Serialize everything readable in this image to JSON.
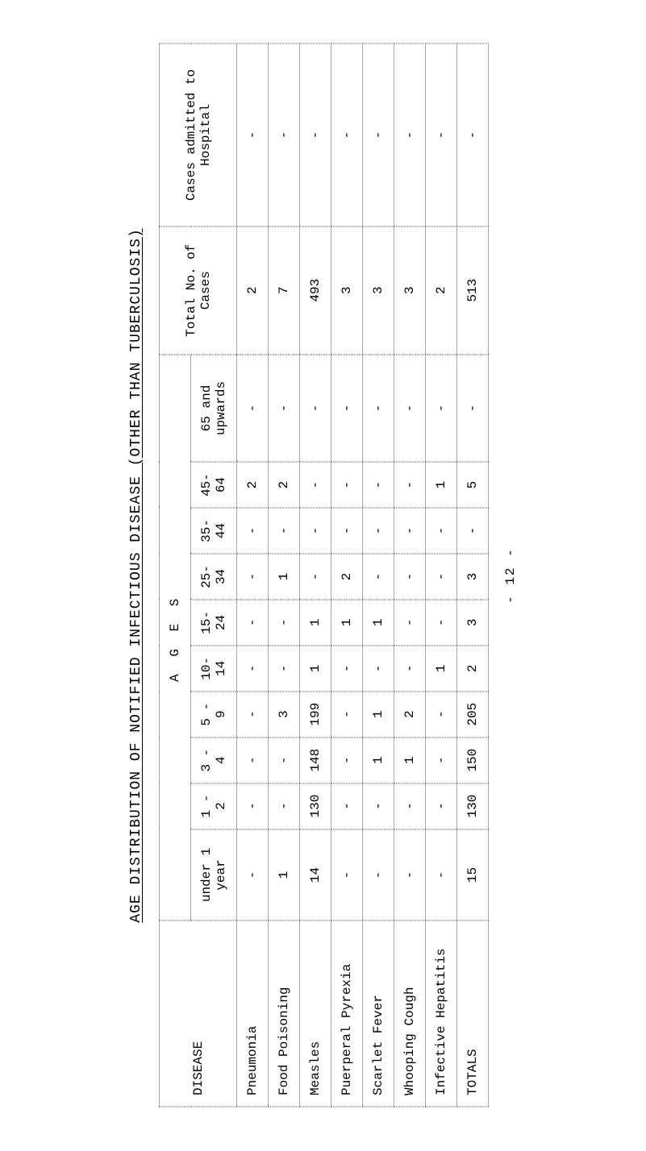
{
  "title": "AGE DISTRIBUTION OF NOTIFIED INFECTIOUS DISEASE (OTHER THAN TUBERCULOSIS)",
  "header": {
    "disease": "DISEASE",
    "ages": "A G E S",
    "total": "Total No. of Cases",
    "hospital": "Cases admitted to Hospital"
  },
  "ageCols": [
    "under 1 year",
    "1 - 2",
    "3 - 4",
    "5 - 9",
    "10-14",
    "15-24",
    "25-34",
    "35-44",
    "45-64",
    "65 and upwards"
  ],
  "rows": [
    {
      "name": "Pneumonia",
      "c": [
        "-",
        "-",
        "-",
        "-",
        "-",
        "-",
        "-",
        "-",
        "2",
        "-"
      ],
      "total": "2",
      "hosp": "-"
    },
    {
      "name": "Food Poisoning",
      "c": [
        "1",
        "-",
        "-",
        "3",
        "-",
        "-",
        "1",
        "-",
        "2",
        "-"
      ],
      "total": "7",
      "hosp": "-"
    },
    {
      "name": "Measles",
      "c": [
        "14",
        "130",
        "148",
        "199",
        "1",
        "1",
        "-",
        "-",
        "-",
        "-"
      ],
      "total": "493",
      "hosp": "-"
    },
    {
      "name": "Puerperal Pyrexia",
      "c": [
        "-",
        "-",
        "-",
        "-",
        "-",
        "1",
        "2",
        "-",
        "-",
        "-"
      ],
      "total": "3",
      "hosp": "-"
    },
    {
      "name": "Scarlet Fever",
      "c": [
        "-",
        "-",
        "1",
        "1",
        "-",
        "1",
        "-",
        "-",
        "-",
        "-"
      ],
      "total": "3",
      "hosp": "-"
    },
    {
      "name": "Whooping Cough",
      "c": [
        "-",
        "-",
        "1",
        "2",
        "-",
        "-",
        "-",
        "-",
        "-",
        "-"
      ],
      "total": "3",
      "hosp": "-"
    },
    {
      "name": "Infective Hepatitis",
      "c": [
        "-",
        "-",
        "-",
        "-",
        "1",
        "-",
        "-",
        "-",
        "1",
        "-"
      ],
      "total": "2",
      "hosp": "-"
    }
  ],
  "totalsRow": {
    "name": "TOTALS",
    "c": [
      "15",
      "130",
      "150",
      "205",
      "2",
      "3",
      "3",
      "-",
      "5",
      "-"
    ],
    "total": "513",
    "hosp": "-"
  },
  "footnote": "- 12 -"
}
